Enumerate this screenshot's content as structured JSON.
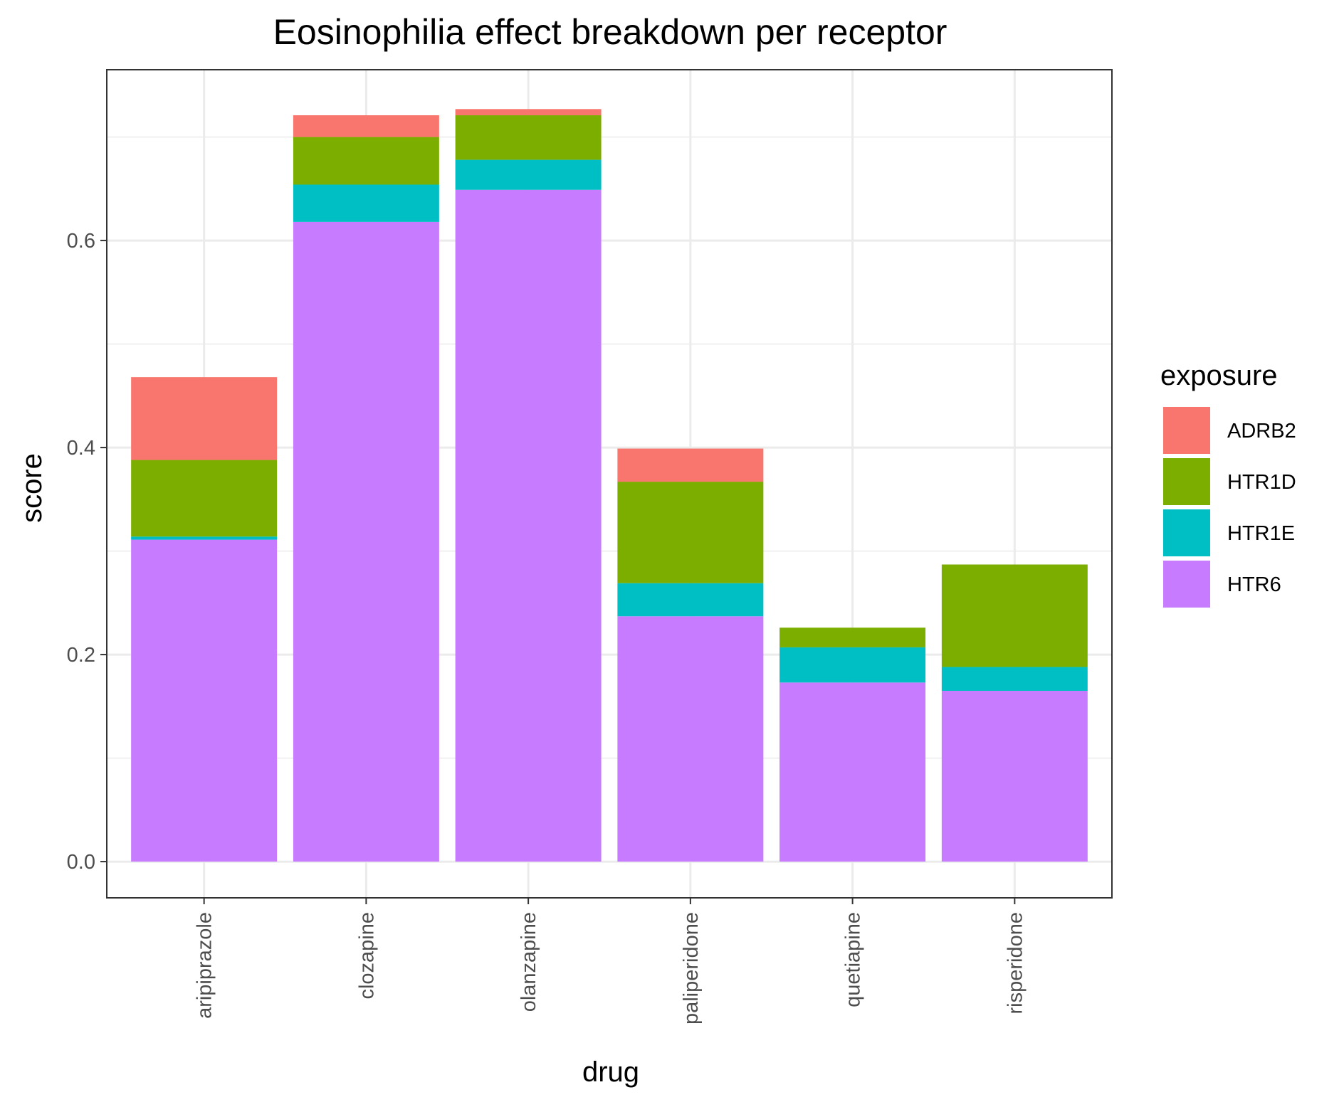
{
  "chart_data": {
    "type": "bar",
    "stacked": true,
    "title": "Eosinophilia effect breakdown per receptor",
    "xlabel": "drug",
    "ylabel": "score",
    "ylim": [
      -0.035,
      0.765
    ],
    "yticks": [
      0.0,
      0.2,
      0.4,
      0.6
    ],
    "ytick_labels": [
      "0.0",
      "0.2",
      "0.4",
      "0.6"
    ],
    "grid": true,
    "legend_title": "exposure",
    "legend_position": "right",
    "categories": [
      "aripiprazole",
      "clozapine",
      "olanzapine",
      "paliperidone",
      "quetiapine",
      "risperidone"
    ],
    "series": [
      {
        "name": "HTR6",
        "color": "#C77CFF",
        "values": [
          0.311,
          0.618,
          0.649,
          0.237,
          0.173,
          0.165
        ]
      },
      {
        "name": "HTR1E",
        "color": "#00BFC4",
        "values": [
          0.003,
          0.036,
          0.029,
          0.032,
          0.034,
          0.023
        ]
      },
      {
        "name": "HTR1D",
        "color": "#7CAE00",
        "values": [
          0.074,
          0.046,
          0.043,
          0.098,
          0.019,
          0.099
        ]
      },
      {
        "name": "ADRB2",
        "color": "#F8766D",
        "values": [
          0.08,
          0.021,
          0.006,
          0.032,
          0.0,
          0.0
        ]
      }
    ],
    "legend_order": [
      "ADRB2",
      "HTR1D",
      "HTR1E",
      "HTR6"
    ]
  }
}
